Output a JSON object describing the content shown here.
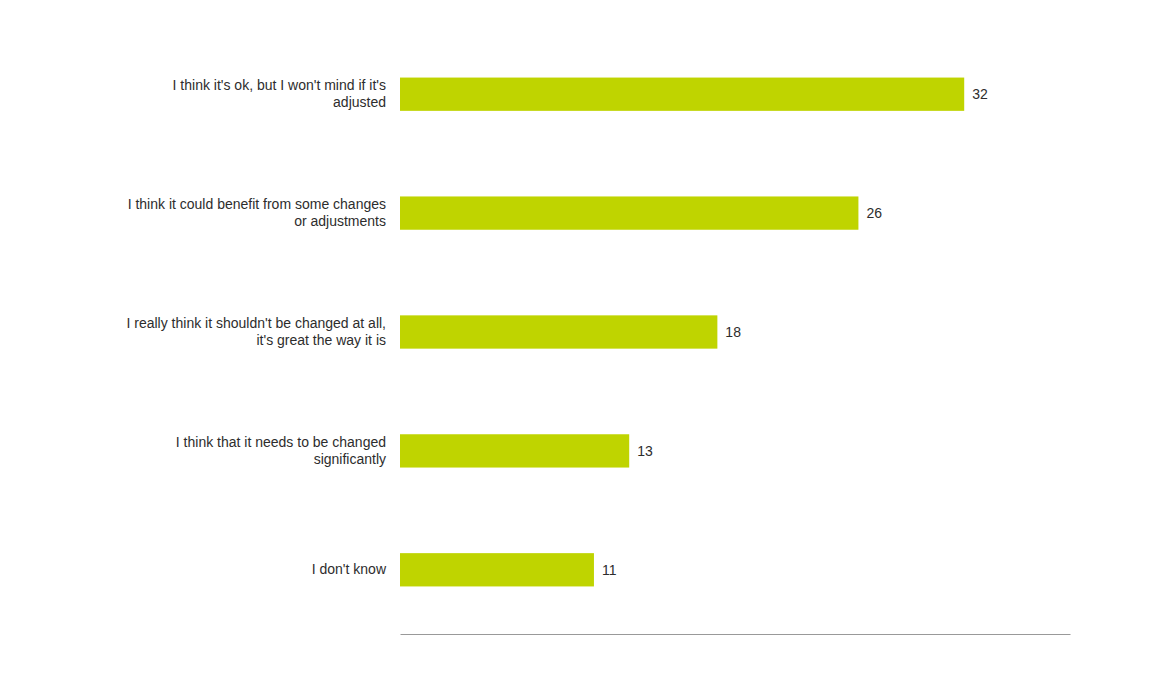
{
  "chart_data": {
    "type": "bar",
    "orientation": "horizontal",
    "categories": [
      "I don't know",
      "I think that it needs to be changed\nsignificantly",
      "I really think it shouldn't be changed at all,\nit's great the way it is",
      "I think it could benefit from some changes\nor adjustments",
      "I think it's ok, but I won't mind if it's\nadjusted"
    ],
    "values": [
      11,
      13,
      18,
      26,
      32
    ],
    "color": "#bfd400",
    "xlim": [
      0,
      38
    ],
    "data_labels": true,
    "tick_labels": "y",
    "grid": false
  }
}
